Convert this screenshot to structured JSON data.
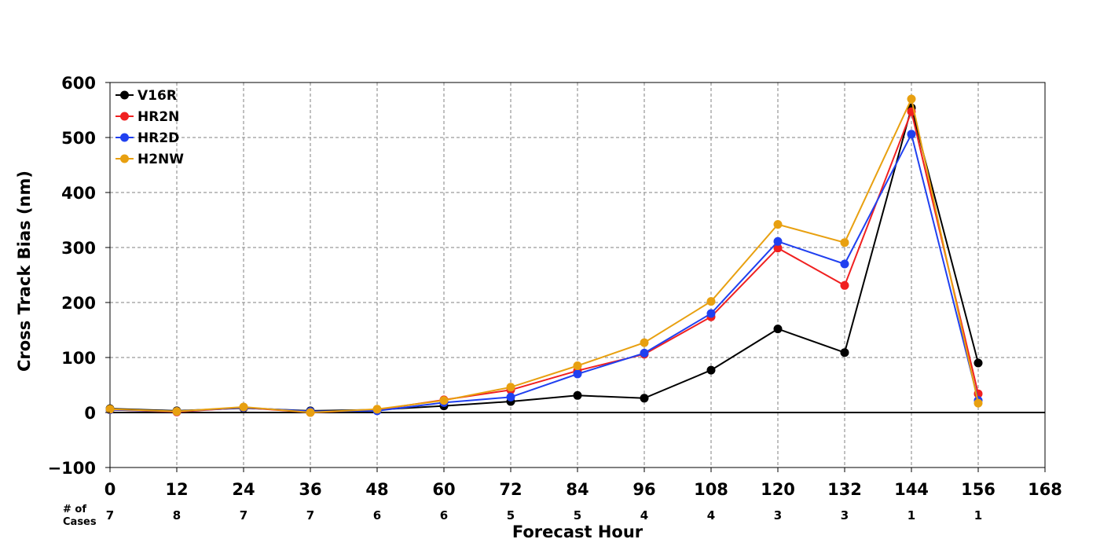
{
  "chart_data": {
    "type": "line",
    "xlabel": "Forecast Hour",
    "ylabel": "Cross Track Bias (nm)",
    "xlim": [
      0,
      168
    ],
    "ylim": [
      -100,
      600
    ],
    "x_ticks": [
      0,
      12,
      24,
      36,
      48,
      60,
      72,
      84,
      96,
      108,
      120,
      132,
      144,
      156,
      168
    ],
    "y_ticks": [
      -100,
      0,
      100,
      200,
      300,
      400,
      500,
      600
    ],
    "y_tick_labels": [
      "−100",
      "0",
      "100",
      "200",
      "300",
      "400",
      "500",
      "600"
    ],
    "grid": true,
    "legend_position": "top-left",
    "cases_header_line1": "# of",
    "cases_header_line2": "Cases",
    "cases": [
      {
        "hour": 0,
        "count": "7"
      },
      {
        "hour": 12,
        "count": "8"
      },
      {
        "hour": 24,
        "count": "7"
      },
      {
        "hour": 36,
        "count": "7"
      },
      {
        "hour": 48,
        "count": "6"
      },
      {
        "hour": 60,
        "count": "6"
      },
      {
        "hour": 72,
        "count": "5"
      },
      {
        "hour": 84,
        "count": "5"
      },
      {
        "hour": 96,
        "count": "4"
      },
      {
        "hour": 108,
        "count": "4"
      },
      {
        "hour": 120,
        "count": "3"
      },
      {
        "hour": 132,
        "count": "3"
      },
      {
        "hour": 144,
        "count": "1"
      },
      {
        "hour": 156,
        "count": "1"
      }
    ],
    "x": [
      0,
      12,
      24,
      36,
      48,
      60,
      72,
      84,
      96,
      108,
      120,
      132,
      144,
      156
    ],
    "series": [
      {
        "name": "V16R",
        "color": "#000000",
        "values": [
          7,
          3,
          8,
          3,
          5,
          12,
          20,
          31,
          26,
          77,
          152,
          109,
          554,
          90
        ]
      },
      {
        "name": "HR2N",
        "color": "#f02020",
        "values": [
          5,
          1,
          9,
          0,
          5,
          23,
          41,
          76,
          106,
          174,
          299,
          231,
          547,
          34
        ]
      },
      {
        "name": "HR2D",
        "color": "#2040f0",
        "values": [
          5,
          2,
          9,
          2,
          3,
          18,
          28,
          70,
          108,
          180,
          311,
          270,
          506,
          22
        ]
      },
      {
        "name": "H2NW",
        "color": "#e8a010",
        "values": [
          6,
          2,
          10,
          0,
          6,
          22,
          46,
          85,
          127,
          202,
          342,
          309,
          570,
          17
        ]
      }
    ]
  }
}
